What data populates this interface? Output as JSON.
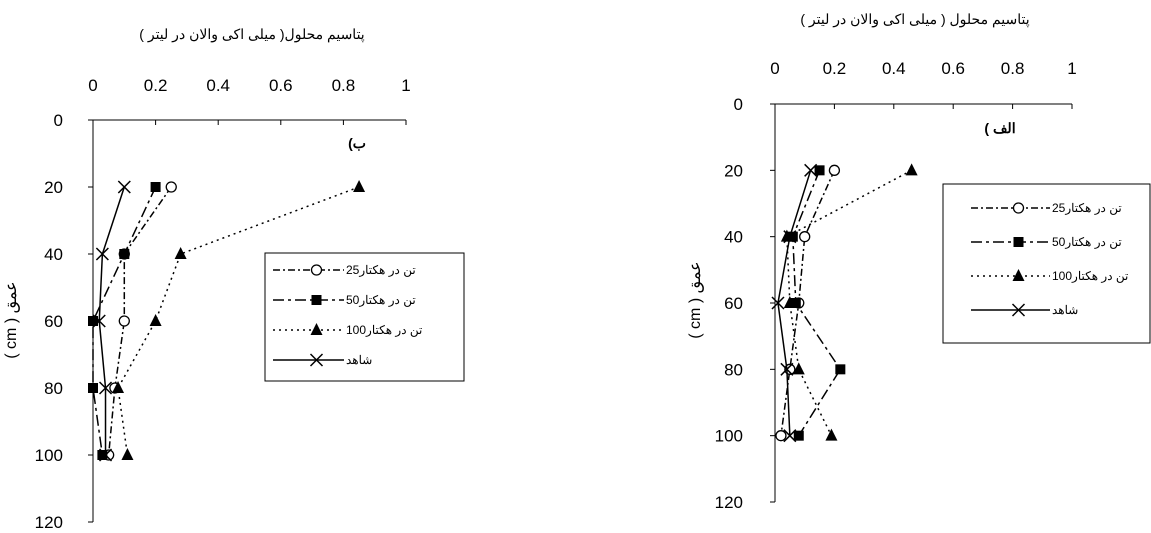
{
  "chart_data": [
    {
      "panel": "right",
      "type": "line",
      "title": "پتاسیم محلول ( میلی اکی والان در لیتر )",
      "panel_label": "الف )",
      "ylabel": "عمق ( cm )",
      "xlim": [
        0,
        1
      ],
      "ylim": [
        0,
        120
      ],
      "y_inverted": true,
      "x_axis_position": "top",
      "x_ticks": [
        "0",
        "0.2",
        "0.4",
        "0.6",
        "0.8",
        "1"
      ],
      "y_ticks": [
        "0",
        "20",
        "40",
        "60",
        "80",
        "100",
        "120"
      ],
      "legend_position": "right",
      "series": [
        {
          "name": "25تن در هکتار",
          "marker": "circle-open",
          "dash": "dash-dot",
          "points": [
            [
              0.2,
              20
            ],
            [
              0.1,
              40
            ],
            [
              0.08,
              60
            ],
            [
              0.05,
              80
            ],
            [
              0.02,
              100
            ]
          ]
        },
        {
          "name": "50تن در هکتار",
          "marker": "square",
          "dash": "long-dash-dot",
          "points": [
            [
              0.15,
              20
            ],
            [
              0.06,
              40
            ],
            [
              0.07,
              60
            ],
            [
              0.22,
              80
            ],
            [
              0.08,
              100
            ]
          ]
        },
        {
          "name": "100تن در هکتار",
          "marker": "triangle",
          "dash": "dotted",
          "points": [
            [
              0.46,
              20
            ],
            [
              0.04,
              40
            ],
            [
              0.05,
              60
            ],
            [
              0.08,
              80
            ],
            [
              0.19,
              100
            ]
          ]
        },
        {
          "name": "شاهد",
          "marker": "x",
          "dash": "solid",
          "points": [
            [
              0.12,
              20
            ],
            [
              0.05,
              40
            ],
            [
              0.01,
              60
            ],
            [
              0.04,
              80
            ],
            [
              0.05,
              100
            ]
          ]
        }
      ]
    },
    {
      "panel": "left",
      "type": "line",
      "title": "پتاسیم محلول( میلی اکی والان در لیتر )",
      "panel_label": "ب)",
      "ylabel": "عمق ( cm )",
      "xlim": [
        0,
        1
      ],
      "ylim": [
        0,
        120
      ],
      "y_inverted": true,
      "x_axis_position": "top",
      "x_ticks": [
        "0",
        "0.2",
        "0.4",
        "0.6",
        "0.8",
        "1"
      ],
      "y_ticks": [
        "0",
        "20",
        "40",
        "60",
        "80",
        "100",
        "120"
      ],
      "legend_position": "right",
      "series": [
        {
          "name": "25تن در هکتار",
          "marker": "circle-open",
          "dash": "dash-dot",
          "points": [
            [
              0.25,
              20
            ],
            [
              0.1,
              40
            ],
            [
              0.1,
              60
            ],
            [
              0.07,
              80
            ],
            [
              0.05,
              100
            ]
          ]
        },
        {
          "name": "50تن در هکتار",
          "marker": "square",
          "dash": "long-dash-dot",
          "points": [
            [
              0.2,
              20
            ],
            [
              0.1,
              40
            ],
            [
              0.0,
              60
            ],
            [
              0.0,
              80
            ],
            [
              0.03,
              100
            ]
          ]
        },
        {
          "name": "100تن در هکتار",
          "marker": "triangle",
          "dash": "dotted",
          "points": [
            [
              0.85,
              20
            ],
            [
              0.28,
              40
            ],
            [
              0.2,
              60
            ],
            [
              0.08,
              80
            ],
            [
              0.11,
              100
            ]
          ]
        },
        {
          "name": "شاهد",
          "marker": "x",
          "dash": "solid",
          "points": [
            [
              0.1,
              20
            ],
            [
              0.03,
              40
            ],
            [
              0.02,
              60
            ],
            [
              0.04,
              80
            ],
            [
              0.04,
              100
            ]
          ]
        }
      ]
    }
  ]
}
